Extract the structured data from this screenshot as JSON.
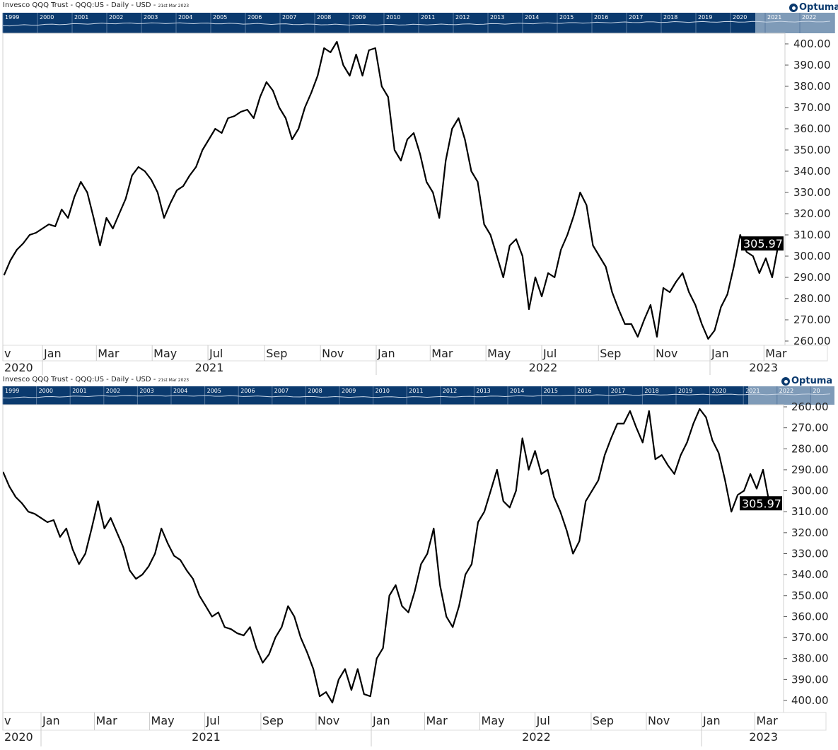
{
  "header": {
    "title": "Invesco QQQ Trust - QQQ:US - Daily - USD",
    "date": "21st Mar 2023",
    "logo": "Optuma"
  },
  "navigator_years": [
    "1999",
    "2000",
    "2001",
    "2002",
    "2003",
    "2004",
    "2005",
    "2006",
    "2007",
    "2008",
    "2009",
    "2010",
    "2011",
    "2012",
    "2013",
    "2014",
    "2015",
    "2016",
    "2017",
    "2018",
    "2019",
    "2020",
    "2021",
    "2022",
    "20"
  ],
  "colors": {
    "navigator_bg": "#0b3a6e",
    "navigator_highlight": "#7f9bb8",
    "line": "#000000",
    "price_label_bg": "#000000"
  },
  "chart_data": [
    {
      "type": "line",
      "title": "Invesco QQQ Trust - QQQ:US - Daily - USD",
      "ylim": [
        260,
        400
      ],
      "y_inverted": false,
      "yticks": [
        "260.00",
        "270.00",
        "280.00",
        "290.00",
        "300.00",
        "310.00",
        "320.00",
        "330.00",
        "340.00",
        "350.00",
        "360.00",
        "370.00",
        "380.00",
        "390.00",
        "400.00"
      ],
      "last_price_label": "305.97"
    },
    {
      "type": "line",
      "title": "Invesco QQQ Trust - QQQ:US - Daily - USD",
      "ylim": [
        260,
        400
      ],
      "y_inverted": true,
      "yticks": [
        "260.00",
        "270.00",
        "280.00",
        "290.00",
        "300.00",
        "310.00",
        "320.00",
        "330.00",
        "340.00",
        "350.00",
        "360.00",
        "370.00",
        "380.00",
        "390.00",
        "400.00"
      ],
      "last_price_label": "305.97"
    }
  ],
  "x_months": [
    {
      "date": "2020-11-01",
      "label": "v"
    },
    {
      "date": "2021-01-01",
      "label": "Jan"
    },
    {
      "date": "2021-03-01",
      "label": "Mar"
    },
    {
      "date": "2021-05-01",
      "label": "May"
    },
    {
      "date": "2021-07-01",
      "label": "Jul"
    },
    {
      "date": "2021-09-01",
      "label": "Sep"
    },
    {
      "date": "2021-11-01",
      "label": "Nov"
    },
    {
      "date": "2022-01-01",
      "label": "Jan"
    },
    {
      "date": "2022-03-01",
      "label": "Mar"
    },
    {
      "date": "2022-05-01",
      "label": "May"
    },
    {
      "date": "2022-07-01",
      "label": "Jul"
    },
    {
      "date": "2022-09-01",
      "label": "Sep"
    },
    {
      "date": "2022-11-01",
      "label": "Nov"
    },
    {
      "date": "2023-01-01",
      "label": "Jan"
    },
    {
      "date": "2023-03-01",
      "label": "Mar"
    }
  ],
  "x_years": [
    "2020",
    "2021",
    "2022",
    "2023"
  ],
  "series": {
    "dates": [
      "2020-11-20",
      "2020-11-27",
      "2020-12-04",
      "2020-12-11",
      "2020-12-18",
      "2020-12-25",
      "2021-01-01",
      "2021-01-08",
      "2021-01-15",
      "2021-01-22",
      "2021-01-29",
      "2021-02-05",
      "2021-02-12",
      "2021-02-19",
      "2021-02-26",
      "2021-03-05",
      "2021-03-12",
      "2021-03-19",
      "2021-03-26",
      "2021-04-02",
      "2021-04-09",
      "2021-04-16",
      "2021-04-23",
      "2021-04-30",
      "2021-05-07",
      "2021-05-14",
      "2021-05-21",
      "2021-05-28",
      "2021-06-04",
      "2021-06-11",
      "2021-06-18",
      "2021-06-25",
      "2021-07-02",
      "2021-07-09",
      "2021-07-16",
      "2021-07-23",
      "2021-07-30",
      "2021-08-06",
      "2021-08-13",
      "2021-08-20",
      "2021-08-27",
      "2021-09-03",
      "2021-09-10",
      "2021-09-17",
      "2021-09-24",
      "2021-10-01",
      "2021-10-08",
      "2021-10-15",
      "2021-10-22",
      "2021-10-29",
      "2021-11-05",
      "2021-11-12",
      "2021-11-19",
      "2021-11-26",
      "2021-12-03",
      "2021-12-10",
      "2021-12-17",
      "2021-12-24",
      "2021-12-31",
      "2022-01-07",
      "2022-01-14",
      "2022-01-21",
      "2022-01-28",
      "2022-02-04",
      "2022-02-11",
      "2022-02-18",
      "2022-02-25",
      "2022-03-04",
      "2022-03-11",
      "2022-03-18",
      "2022-03-25",
      "2022-04-01",
      "2022-04-08",
      "2022-04-15",
      "2022-04-22",
      "2022-04-29",
      "2022-05-06",
      "2022-05-13",
      "2022-05-20",
      "2022-05-27",
      "2022-06-03",
      "2022-06-10",
      "2022-06-17",
      "2022-06-24",
      "2022-07-01",
      "2022-07-08",
      "2022-07-15",
      "2022-07-22",
      "2022-07-29",
      "2022-08-05",
      "2022-08-12",
      "2022-08-19",
      "2022-08-26",
      "2022-09-02",
      "2022-09-09",
      "2022-09-16",
      "2022-09-23",
      "2022-09-30",
      "2022-10-07",
      "2022-10-14",
      "2022-10-21",
      "2022-10-28",
      "2022-11-04",
      "2022-11-11",
      "2022-11-18",
      "2022-11-25",
      "2022-12-02",
      "2022-12-09",
      "2022-12-16",
      "2022-12-23",
      "2022-12-30",
      "2023-01-06",
      "2023-01-13",
      "2023-01-20",
      "2023-01-27",
      "2023-02-03",
      "2023-02-10",
      "2023-02-17",
      "2023-02-24",
      "2023-03-03",
      "2023-03-10",
      "2023-03-17",
      "2023-03-21"
    ],
    "close": [
      291,
      298,
      303,
      306,
      310,
      311,
      313,
      315,
      314,
      322,
      318,
      328,
      335,
      330,
      318,
      305,
      318,
      313,
      320,
      327,
      338,
      342,
      340,
      336,
      330,
      318,
      325,
      331,
      333,
      338,
      342,
      350,
      355,
      360,
      358,
      365,
      366,
      368,
      369,
      365,
      375,
      382,
      378,
      370,
      365,
      355,
      360,
      370,
      377,
      385,
      398,
      396,
      401,
      390,
      385,
      395,
      385,
      397,
      398,
      380,
      375,
      350,
      345,
      355,
      358,
      348,
      335,
      330,
      318,
      345,
      360,
      365,
      355,
      340,
      335,
      315,
      310,
      300,
      290,
      305,
      308,
      300,
      275,
      290,
      281,
      292,
      290,
      303,
      310,
      319,
      330,
      324,
      305,
      300,
      295,
      283,
      275,
      268,
      268,
      262,
      270,
      277,
      262,
      285,
      283,
      288,
      292,
      283,
      277,
      268,
      261,
      265,
      276,
      282,
      295,
      310,
      302,
      300,
      292,
      299,
      290,
      306,
      305.97
    ]
  }
}
